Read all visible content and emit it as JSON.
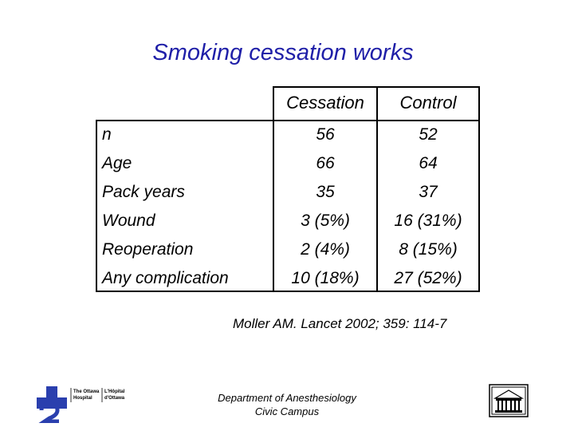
{
  "slide": {
    "title": "Smoking cessation works",
    "citation": "Moller AM. Lancet 2002; 359: 114-7",
    "footer": [
      "Department of Anesthesiology",
      "Civic Campus"
    ],
    "colors": {
      "title": "#1f1fa8",
      "logo_blue": "#2a3fae"
    }
  },
  "table": {
    "columns": [
      "Cessation",
      "Control"
    ],
    "rows": [
      {
        "label": "n",
        "values": [
          "56",
          "52"
        ]
      },
      {
        "label": "Age",
        "values": [
          "66",
          "64"
        ]
      },
      {
        "label": "Pack years",
        "values": [
          "35",
          "37"
        ]
      },
      {
        "label": "Wound",
        "values": [
          "3 (5%)",
          "16 (31%)"
        ]
      },
      {
        "label": "Reoperation",
        "values": [
          "2 (4%)",
          "8 (15%)"
        ]
      },
      {
        "label": "Any complication",
        "values": [
          "10 (18%)",
          "27 (52%)"
        ]
      }
    ]
  },
  "logos": {
    "hospital": {
      "icon": "ottawa-hospital-logo-icon",
      "text": [
        "The Ottawa",
        "Hospital",
        "L'Hôpital",
        "d'Ottawa"
      ]
    },
    "building": {
      "icon": "civic-campus-building-icon"
    }
  }
}
